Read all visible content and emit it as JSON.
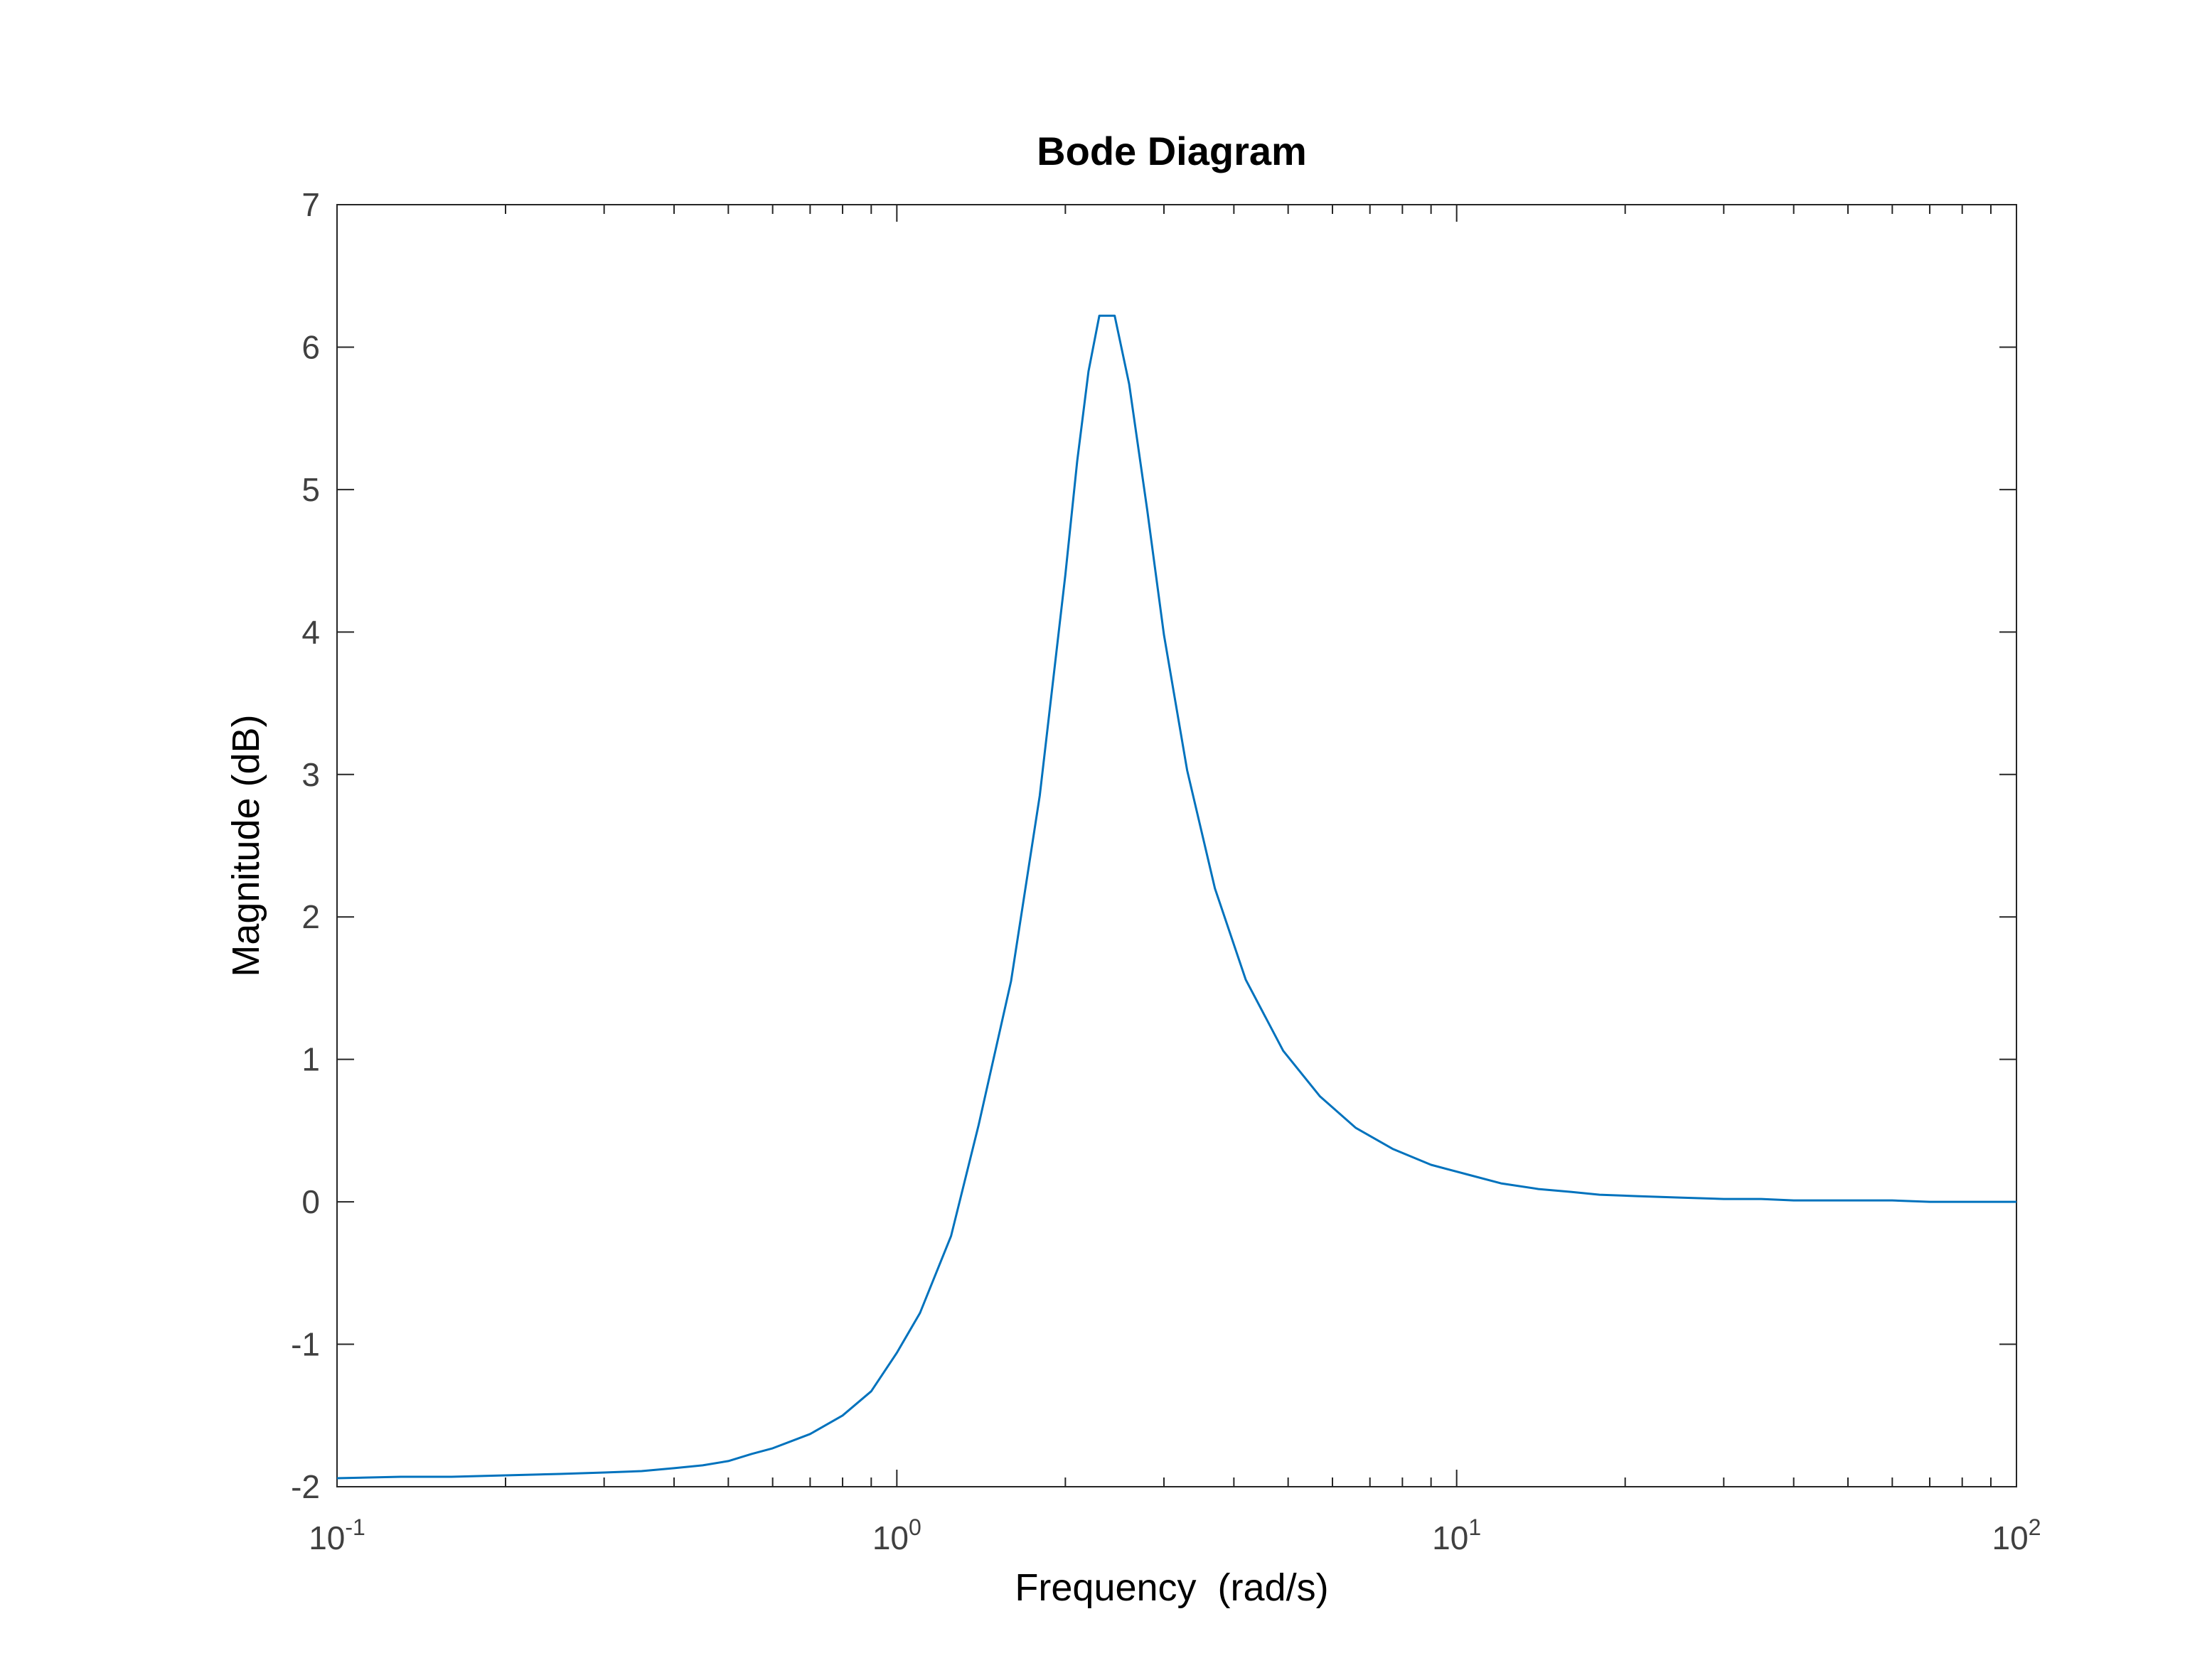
{
  "chart_data": {
    "type": "line",
    "title": "Bode Diagram",
    "xlabel": "Frequency  (rad/s)",
    "ylabel": "Magnitude (dB)",
    "xscale": "log",
    "xlim": [
      0.1,
      100
    ],
    "ylim": [
      -2,
      7
    ],
    "grid": false,
    "line_color": "#0072BD",
    "axis_color": "#262626",
    "y_ticks": [
      -2,
      -1,
      0,
      1,
      2,
      3,
      4,
      5,
      6,
      7
    ],
    "x_ticks": [
      {
        "value": 0.1,
        "base": "10",
        "exp": "-1"
      },
      {
        "value": 1,
        "base": "10",
        "exp": "0"
      },
      {
        "value": 10,
        "base": "10",
        "exp": "1"
      },
      {
        "value": 100,
        "base": "10",
        "exp": "2"
      }
    ],
    "series": [
      {
        "x": [
          0.1,
          0.13,
          0.16,
          0.2,
          0.25,
          0.3,
          0.35,
          0.4,
          0.45,
          0.5,
          0.55,
          0.6,
          0.7,
          0.8,
          0.9,
          1.0,
          1.1,
          1.25,
          1.4,
          1.6,
          1.8,
          2.0,
          2.1,
          2.2,
          2.3,
          2.45,
          2.6,
          2.8,
          3.0,
          3.3,
          3.7,
          4.2,
          4.9,
          5.7,
          6.6,
          7.7,
          9.0,
          10.5,
          12,
          14,
          16,
          18,
          21,
          25,
          30,
          35,
          40,
          50,
          60,
          70,
          80,
          90,
          100
        ],
        "y": [
          -1.94,
          -1.93,
          -1.93,
          -1.92,
          -1.91,
          -1.9,
          -1.89,
          -1.87,
          -1.85,
          -1.82,
          -1.77,
          -1.73,
          -1.63,
          -1.5,
          -1.33,
          -1.06,
          -0.78,
          -0.24,
          0.54,
          1.55,
          2.85,
          4.4,
          5.2,
          5.83,
          6.22,
          6.22,
          5.74,
          4.86,
          3.98,
          3.03,
          2.2,
          1.56,
          1.06,
          0.74,
          0.52,
          0.37,
          0.26,
          0.19,
          0.13,
          0.09,
          0.07,
          0.05,
          0.04,
          0.03,
          0.02,
          0.02,
          0.01,
          0.01,
          0.01,
          0.0,
          0.0,
          0.0,
          0.0
        ]
      }
    ]
  }
}
